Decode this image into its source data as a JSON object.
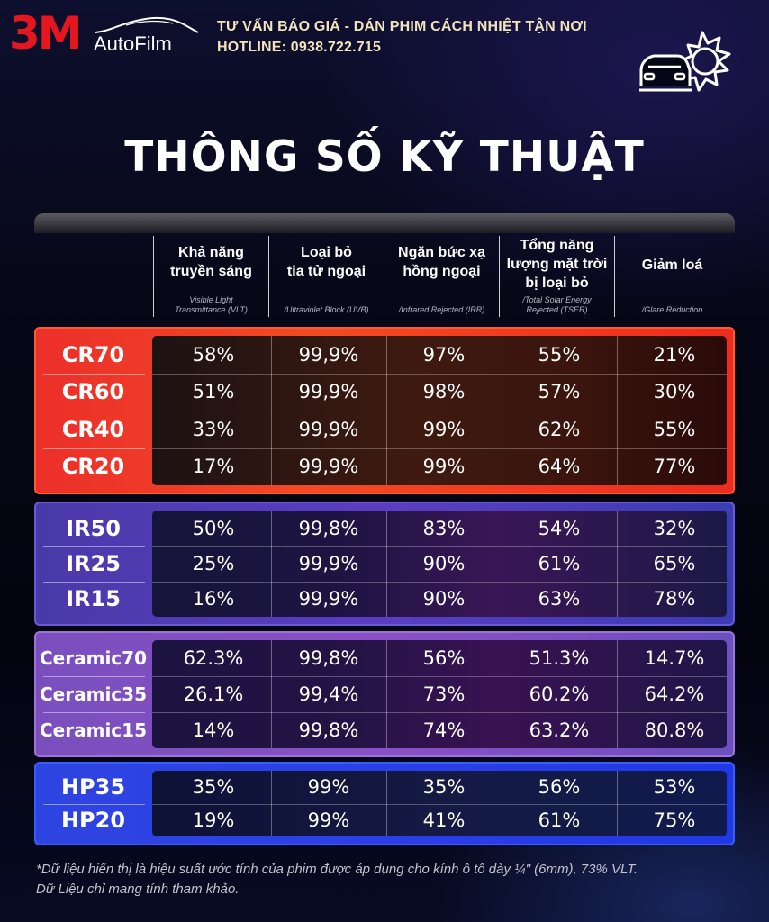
{
  "brand": {
    "logo_3m": "3M",
    "logo_autofilm": "AutoFilm",
    "tagline": "TƯ VẤN BÁO GIÁ - DÁN PHIM CÁCH NHIỆT TẬN NƠI",
    "hotline": "HOTLINE: 0938.722.715",
    "accent_red": "#e5161d",
    "tagline_color": "#f3e4bd"
  },
  "icons": [
    "car-line-icon",
    "car-sun-icon"
  ],
  "title": "THÔNG SỐ KỸ THUẬT",
  "columns": [
    {
      "vn_lines": [
        "Khả năng",
        "truyền sáng"
      ],
      "en_lines": [
        "Visible Light",
        "Transmittance (VLT)"
      ]
    },
    {
      "vn_lines": [
        "Loại bỏ",
        "tia tử ngoại"
      ],
      "en_lines": [
        "/Ultraviolet Block (UVB)"
      ]
    },
    {
      "vn_lines": [
        "Ngăn bức xạ",
        "hồng ngoại"
      ],
      "en_lines": [
        "/Infrared Rejected (IRR)"
      ]
    },
    {
      "vn_lines": [
        "Tổng năng",
        "lượng mặt trời",
        "bị loại bỏ"
      ],
      "en_lines": [
        "/Total Solar Energy",
        "Rejected (TSER)"
      ]
    },
    {
      "vn_lines": [
        "Giảm loá"
      ],
      "en_lines": [
        "/Glare Reduction"
      ]
    }
  ],
  "groups": [
    {
      "id": "cr",
      "color": "#ec2f2a",
      "rows": [
        {
          "name": "CR70",
          "values": [
            "58%",
            "99,9%",
            "97%",
            "55%",
            "21%"
          ]
        },
        {
          "name": "CR60",
          "values": [
            "51%",
            "99,9%",
            "98%",
            "57%",
            "30%"
          ]
        },
        {
          "name": "CR40",
          "values": [
            "33%",
            "99,9%",
            "99%",
            "62%",
            "55%"
          ]
        },
        {
          "name": "CR20",
          "values": [
            "17%",
            "99,9%",
            "99%",
            "64%",
            "77%"
          ]
        }
      ]
    },
    {
      "id": "ir",
      "color": "#4a3aa8",
      "rows": [
        {
          "name": "IR50",
          "values": [
            "50%",
            "99,8%",
            "83%",
            "54%",
            "32%"
          ]
        },
        {
          "name": "IR25",
          "values": [
            "25%",
            "99,9%",
            "90%",
            "61%",
            "65%"
          ]
        },
        {
          "name": "IR15",
          "values": [
            "16%",
            "99,9%",
            "90%",
            "63%",
            "78%"
          ]
        }
      ]
    },
    {
      "id": "ce",
      "color": "#7a4fbd",
      "rows": [
        {
          "name": "Ceramic70",
          "values": [
            "62.3%",
            "99,8%",
            "56%",
            "51.3%",
            "14.7%"
          ]
        },
        {
          "name": "Ceramic35",
          "values": [
            "26.1%",
            "99,4%",
            "73%",
            "60.2%",
            "64.2%"
          ]
        },
        {
          "name": "Ceramic15",
          "values": [
            "14%",
            "99,8%",
            "74%",
            "63.2%",
            "80.8%"
          ]
        }
      ]
    },
    {
      "id": "hp",
      "color": "#2e44e0",
      "rows": [
        {
          "name": "HP35",
          "values": [
            "35%",
            "99%",
            "35%",
            "56%",
            "53%"
          ]
        },
        {
          "name": "HP20",
          "values": [
            "19%",
            "99%",
            "41%",
            "61%",
            "75%"
          ]
        }
      ]
    }
  ],
  "footnote": {
    "line1": "*Dữ liệu hiển thị là hiệu suất ước tính của phim được áp dụng cho kính ô tô dày ¼\" (6mm), 73% VLT.",
    "line2": "Dữ Liệu chỉ mang tính tham khảo."
  }
}
